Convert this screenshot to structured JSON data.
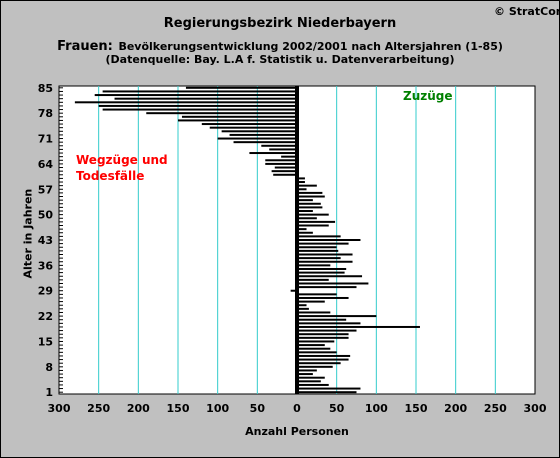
{
  "copyright": "© StratCon",
  "title_line1": "Regierungsbezirk Niederbayern",
  "title_line2_prefix": "Frauen:",
  "title_line2_rest": "Bevölkerungsentwicklung 2002/2001 nach Altersjahren (1-85)",
  "title_line3": "(Datenquelle: Bay. L.A f. Statistik u. Datenverarbeitung)",
  "colors": {
    "background": "#c0c0c0",
    "plot": "#ffffff",
    "grid": "#33cccc",
    "bars": "#000000",
    "outflow_label": "#ff0000",
    "inflow_label": "#008000"
  },
  "chart_data": {
    "type": "bar",
    "orientation": "horizontal",
    "title": "Regierungsbezirk Niederbayern — Frauen: Bevölkerungsentwicklung 2002/2001 nach Altersjahren (1-85)",
    "xlabel": "Anzahl Personen",
    "ylabel": "Alter in Jahren",
    "xlim": [
      -300,
      300
    ],
    "ylim": [
      1,
      85
    ],
    "x_tick_labels": [
      "300",
      "250",
      "200",
      "150",
      "100",
      "50",
      "0",
      "50",
      "100",
      "150",
      "200",
      "250",
      "300"
    ],
    "y_ticks": [
      1,
      8,
      15,
      22,
      29,
      36,
      43,
      50,
      57,
      64,
      71,
      78,
      85
    ],
    "grid": true,
    "annotations": [
      {
        "text_lines": [
          "Wegzüge und",
          "Todesfälle"
        ],
        "side": "left"
      },
      {
        "text_lines": [
          "Zuzüge"
        ],
        "side": "right"
      }
    ],
    "ages": [
      1,
      2,
      3,
      4,
      5,
      6,
      7,
      8,
      9,
      10,
      11,
      12,
      13,
      14,
      15,
      16,
      17,
      18,
      19,
      20,
      21,
      22,
      23,
      24,
      25,
      26,
      27,
      28,
      29,
      30,
      31,
      32,
      33,
      34,
      35,
      36,
      37,
      38,
      39,
      40,
      41,
      42,
      43,
      44,
      45,
      46,
      47,
      48,
      49,
      50,
      51,
      52,
      53,
      54,
      55,
      56,
      57,
      58,
      59,
      60,
      61,
      62,
      63,
      64,
      65,
      66,
      67,
      68,
      69,
      70,
      71,
      72,
      73,
      74,
      75,
      76,
      77,
      78,
      79,
      80,
      81,
      82,
      83,
      84,
      85
    ],
    "values": [
      75,
      80,
      40,
      30,
      35,
      20,
      25,
      45,
      55,
      65,
      67,
      50,
      42,
      35,
      47,
      65,
      65,
      75,
      155,
      80,
      62,
      100,
      42,
      15,
      12,
      35,
      65,
      50,
      -8,
      75,
      90,
      40,
      82,
      60,
      62,
      42,
      70,
      55,
      70,
      52,
      50,
      65,
      80,
      55,
      20,
      12,
      40,
      48,
      25,
      40,
      20,
      32,
      30,
      20,
      35,
      32,
      12,
      25,
      10,
      10,
      -30,
      -32,
      -28,
      -40,
      -40,
      -20,
      -60,
      -35,
      -45,
      -80,
      -100,
      -85,
      -95,
      -110,
      -120,
      -150,
      -145,
      -190,
      -245,
      -250,
      -280,
      -230,
      -255,
      -245,
      -140
    ]
  }
}
